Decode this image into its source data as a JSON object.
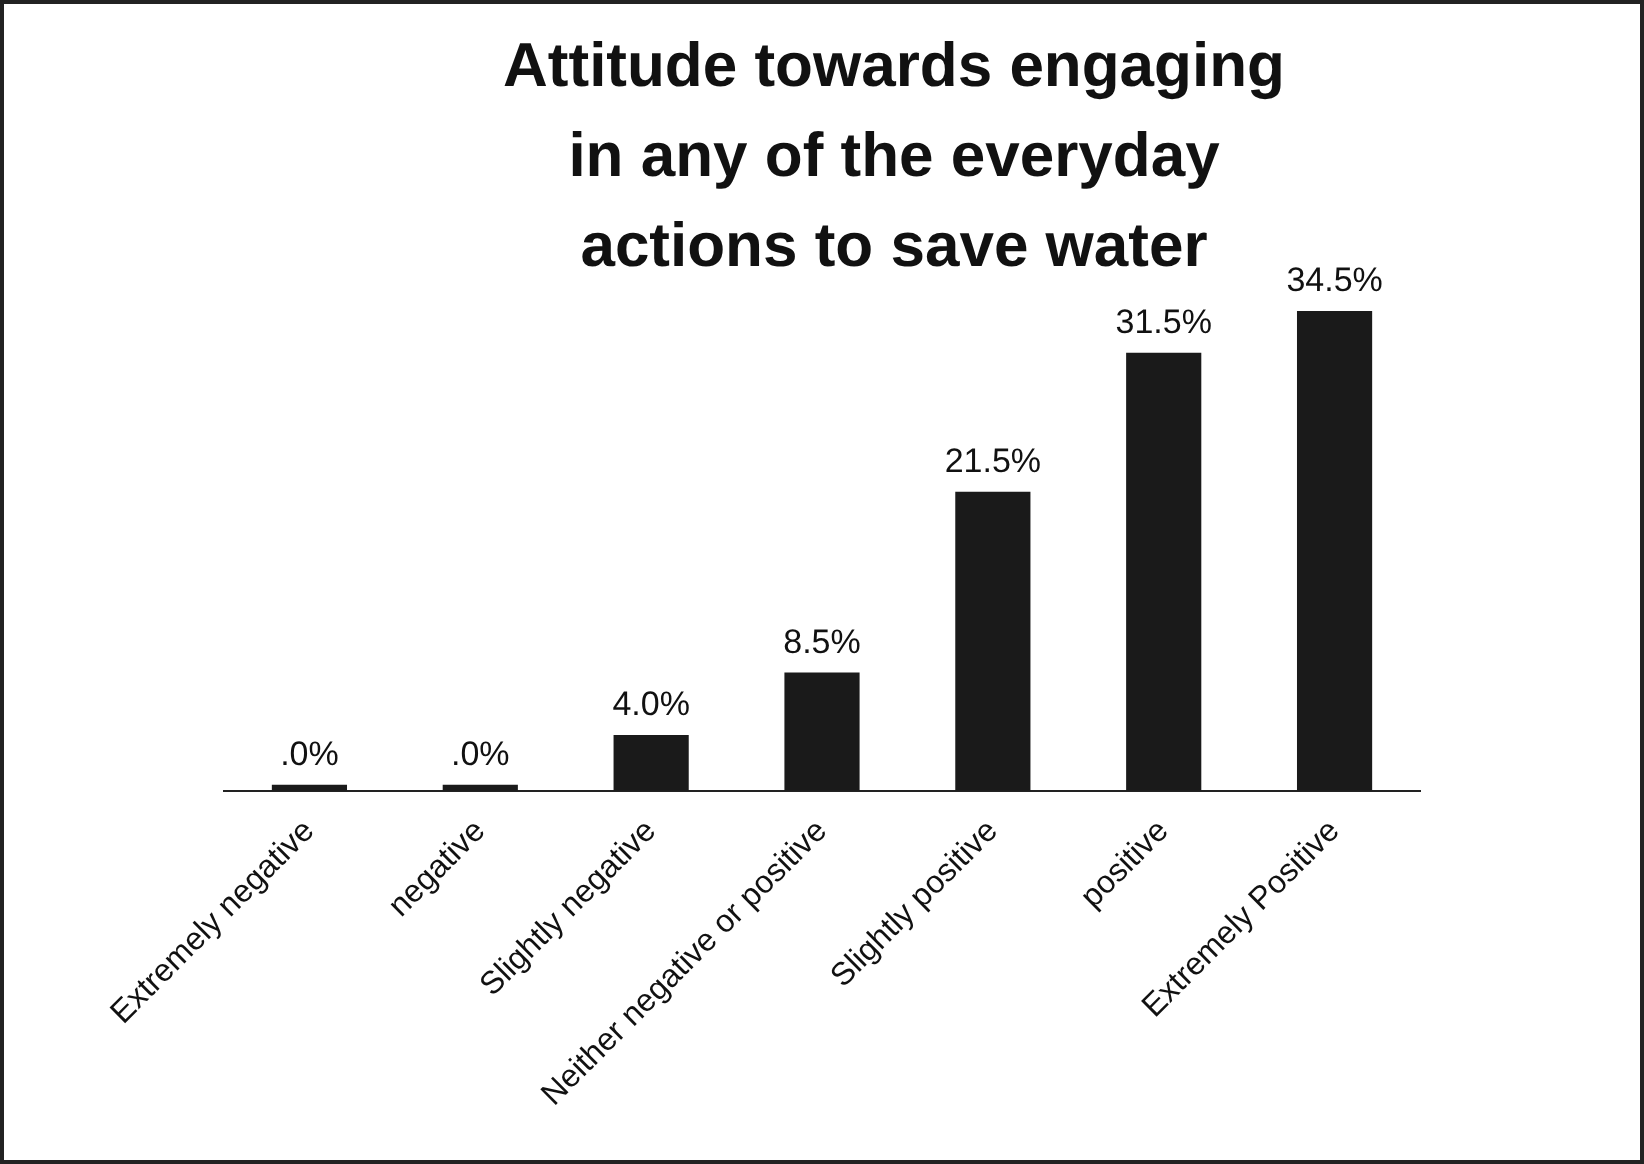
{
  "chart_data": {
    "type": "bar",
    "title": "Attitude towards engaging in any of the everyday actions to save water",
    "categories": [
      "Extremely negative",
      "negative",
      "Slightly negative",
      "Neither negative or positive",
      "Slightly positive",
      "positive",
      "Extremely Positive"
    ],
    "values": [
      0,
      0,
      4.0,
      8.5,
      21.5,
      31.5,
      34.5
    ],
    "value_labels": [
      ".0%",
      ".0%",
      "4.0%",
      "8.5%",
      "21.5%",
      "31.5%",
      "34.5%"
    ],
    "color": "#1a1a1a",
    "grid": false,
    "legend": false
  }
}
